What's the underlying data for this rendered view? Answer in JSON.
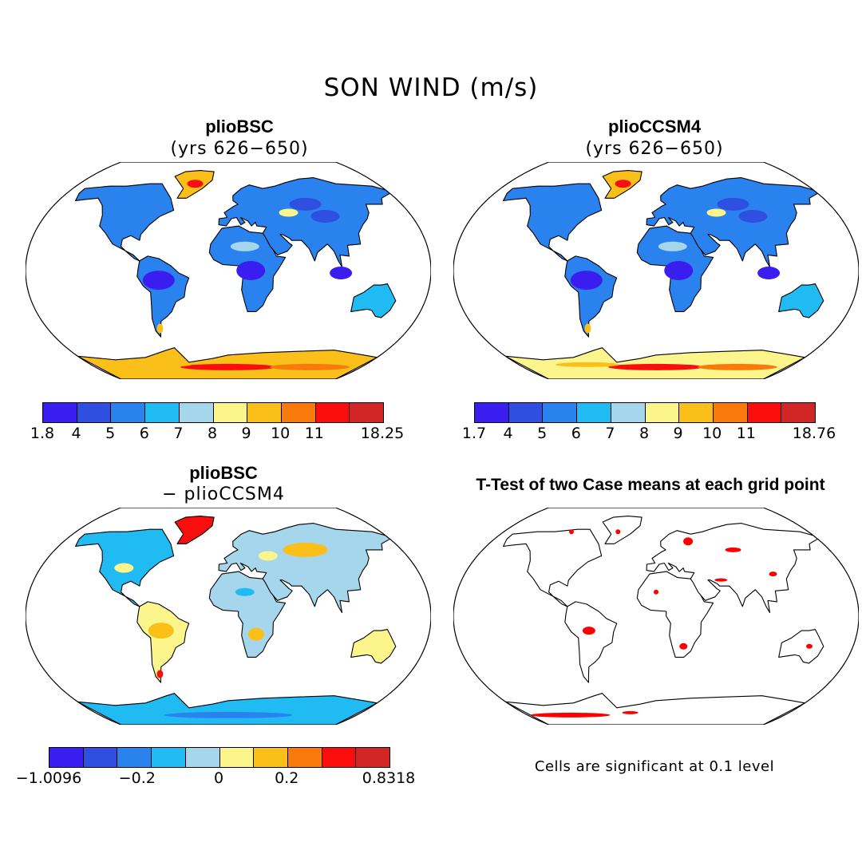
{
  "title": "SON WIND (m/s)",
  "panels": [
    {
      "title": "plioBSC",
      "subtitle": "(yrs 626−650)"
    },
    {
      "title": "plioCCSM4",
      "subtitle": "(yrs 626−650)"
    },
    {
      "title": "plioBSC",
      "subtitle": "− plioCCSM4"
    },
    {
      "title": "T-Test of two Case means at each grid point",
      "subtitle": ""
    }
  ],
  "colorbars": [
    {
      "colors": [
        "#3a1ef0",
        "#2e4fe0",
        "#2a82ee",
        "#1fbbf2",
        "#a6d6ec",
        "#fbf58c",
        "#fbbf1a",
        "#f97a0a",
        "#fa0d0d",
        "#d22626"
      ],
      "ticks": [
        "1.8",
        "4",
        "5",
        "6",
        "7",
        "8",
        "9",
        "10",
        "11",
        "18.25"
      ]
    },
    {
      "colors": [
        "#3a1ef0",
        "#2e4fe0",
        "#2a82ee",
        "#1fbbf2",
        "#a6d6ec",
        "#fbf58c",
        "#fbbf1a",
        "#f97a0a",
        "#fa0d0d",
        "#d22626"
      ],
      "ticks": [
        "1.7",
        "4",
        "5",
        "6",
        "7",
        "8",
        "9",
        "10",
        "11",
        "18.76"
      ]
    },
    {
      "colors": [
        "#3a1ef0",
        "#2e4fe0",
        "#2a82ee",
        "#1fbbf2",
        "#a6d6ec",
        "#fbf58c",
        "#fbbf1a",
        "#f97a0a",
        "#fa0d0d",
        "#d22626"
      ],
      "ticks": [
        "−1.0096",
        "−0.2",
        "0",
        "0.2",
        "0.8318"
      ]
    }
  ],
  "note": "Cells are significant at 0.1 level",
  "significance_color": "#ff0000"
}
